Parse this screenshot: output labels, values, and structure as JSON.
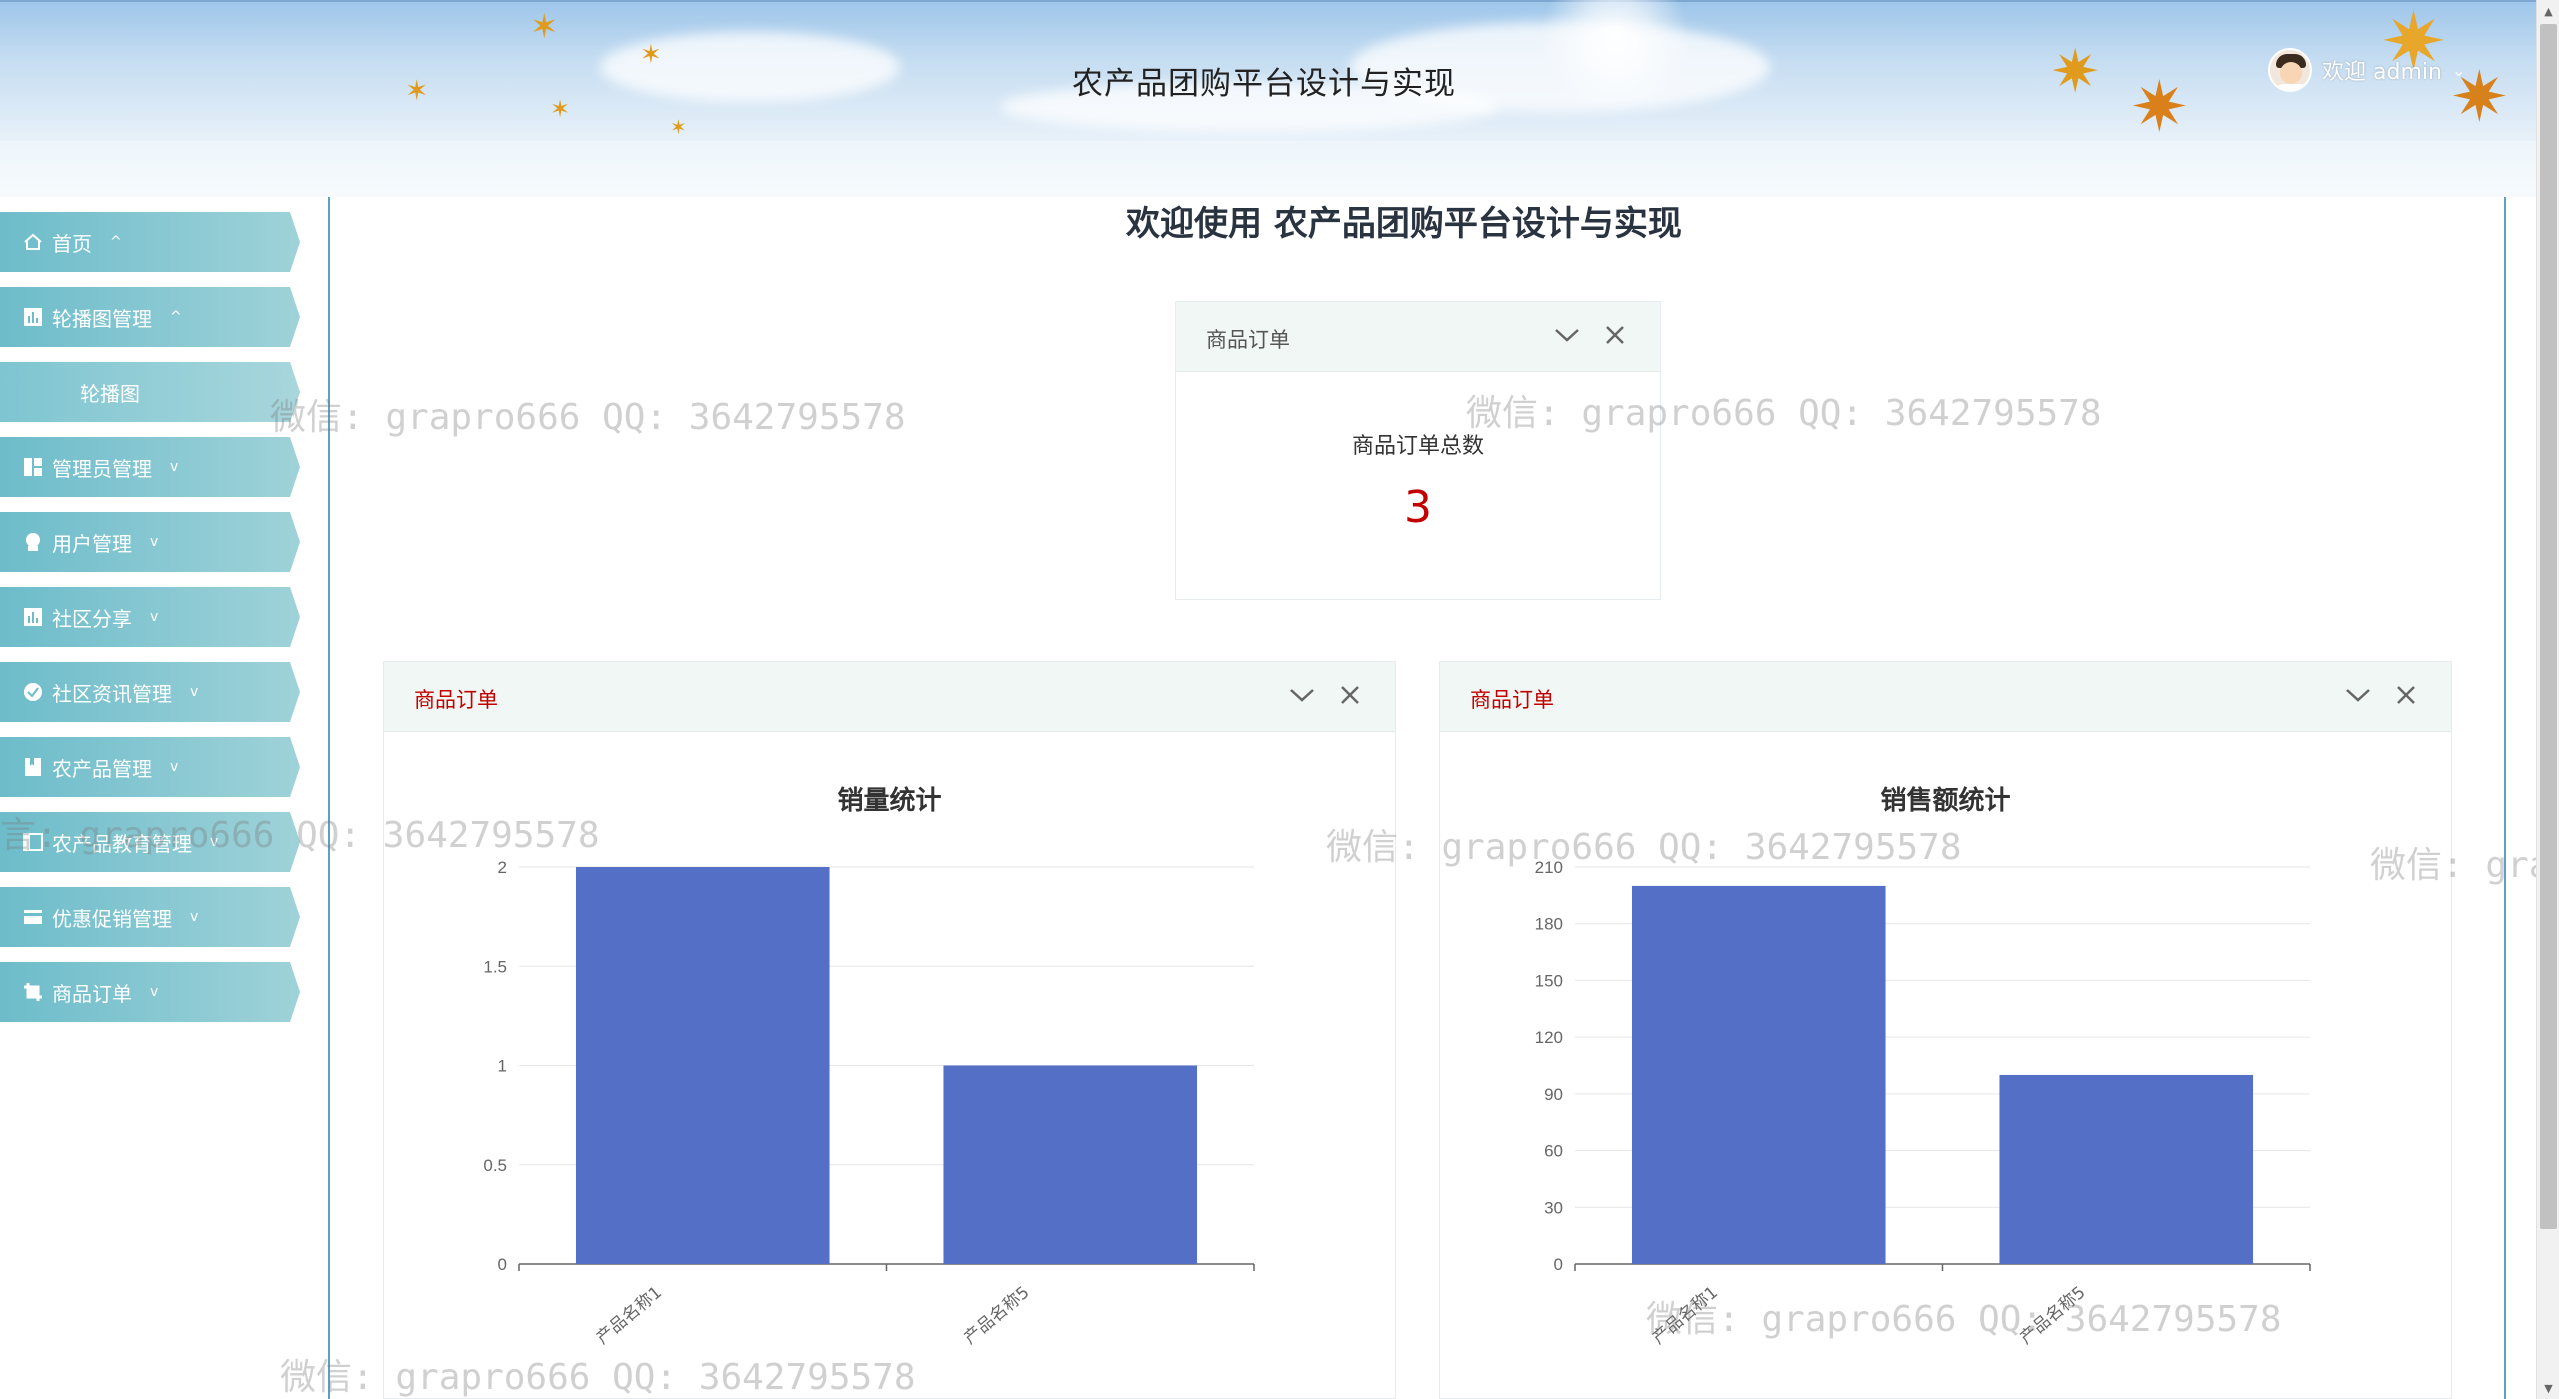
{
  "header": {
    "title": "农产品团购平台设计与实现",
    "welcome": "欢迎 admin"
  },
  "sidebar": {
    "items": [
      {
        "label": "首页",
        "icon": "home-icon",
        "arrow": "^"
      },
      {
        "label": "轮播图管理",
        "icon": "chart-icon",
        "arrow": "^"
      },
      {
        "label": "管理员管理",
        "icon": "grid-icon",
        "arrow": "v"
      },
      {
        "label": "用户管理",
        "icon": "user-icon",
        "arrow": "v"
      },
      {
        "label": "社区分享",
        "icon": "chart-icon",
        "arrow": "v"
      },
      {
        "label": "社区资讯管理",
        "icon": "check-circle-icon",
        "arrow": "v"
      },
      {
        "label": "农产品管理",
        "icon": "bookmark-icon",
        "arrow": "v"
      },
      {
        "label": "农产品教育管理",
        "icon": "window-icon",
        "arrow": "v"
      },
      {
        "label": "优惠促销管理",
        "icon": "card-icon",
        "arrow": "v"
      },
      {
        "label": "商品订单",
        "icon": "crop-icon",
        "arrow": "v"
      }
    ],
    "sub_item": "轮播图"
  },
  "main": {
    "heading": "欢迎使用 农产品团购平台设计与实现",
    "stat_card": {
      "title": "商品订单",
      "label": "商品订单总数",
      "value": "3"
    },
    "chart_cards": [
      {
        "title": "商品订单"
      },
      {
        "title": "商品订单"
      }
    ]
  },
  "watermark_text": "微信: grapro666 QQ: 3642795578",
  "watermark_partial_right": "微信: gra",
  "watermark_partial_left": "言: grapro666 QQ: 3642795578",
  "colors": {
    "accent": "#6dbcca",
    "bar": "#5470c6",
    "stat_value": "#c20000",
    "card_title_red": "#c20000"
  },
  "chart_data": [
    {
      "type": "bar",
      "title": "销量统计",
      "categories": [
        "产品名称1",
        "产品名称5"
      ],
      "values": [
        2,
        1
      ],
      "ylim": [
        0,
        2
      ],
      "yticks": [
        "0",
        "0.5",
        "1",
        "1.5",
        "2"
      ],
      "grid": true
    },
    {
      "type": "bar",
      "title": "销售额统计",
      "categories": [
        "产品名称1",
        "产品名称5"
      ],
      "values": [
        200,
        100
      ],
      "ylim": [
        0,
        210
      ],
      "yticks": [
        "0",
        "30",
        "60",
        "90",
        "120",
        "150",
        "180",
        "210"
      ],
      "grid": true
    }
  ]
}
